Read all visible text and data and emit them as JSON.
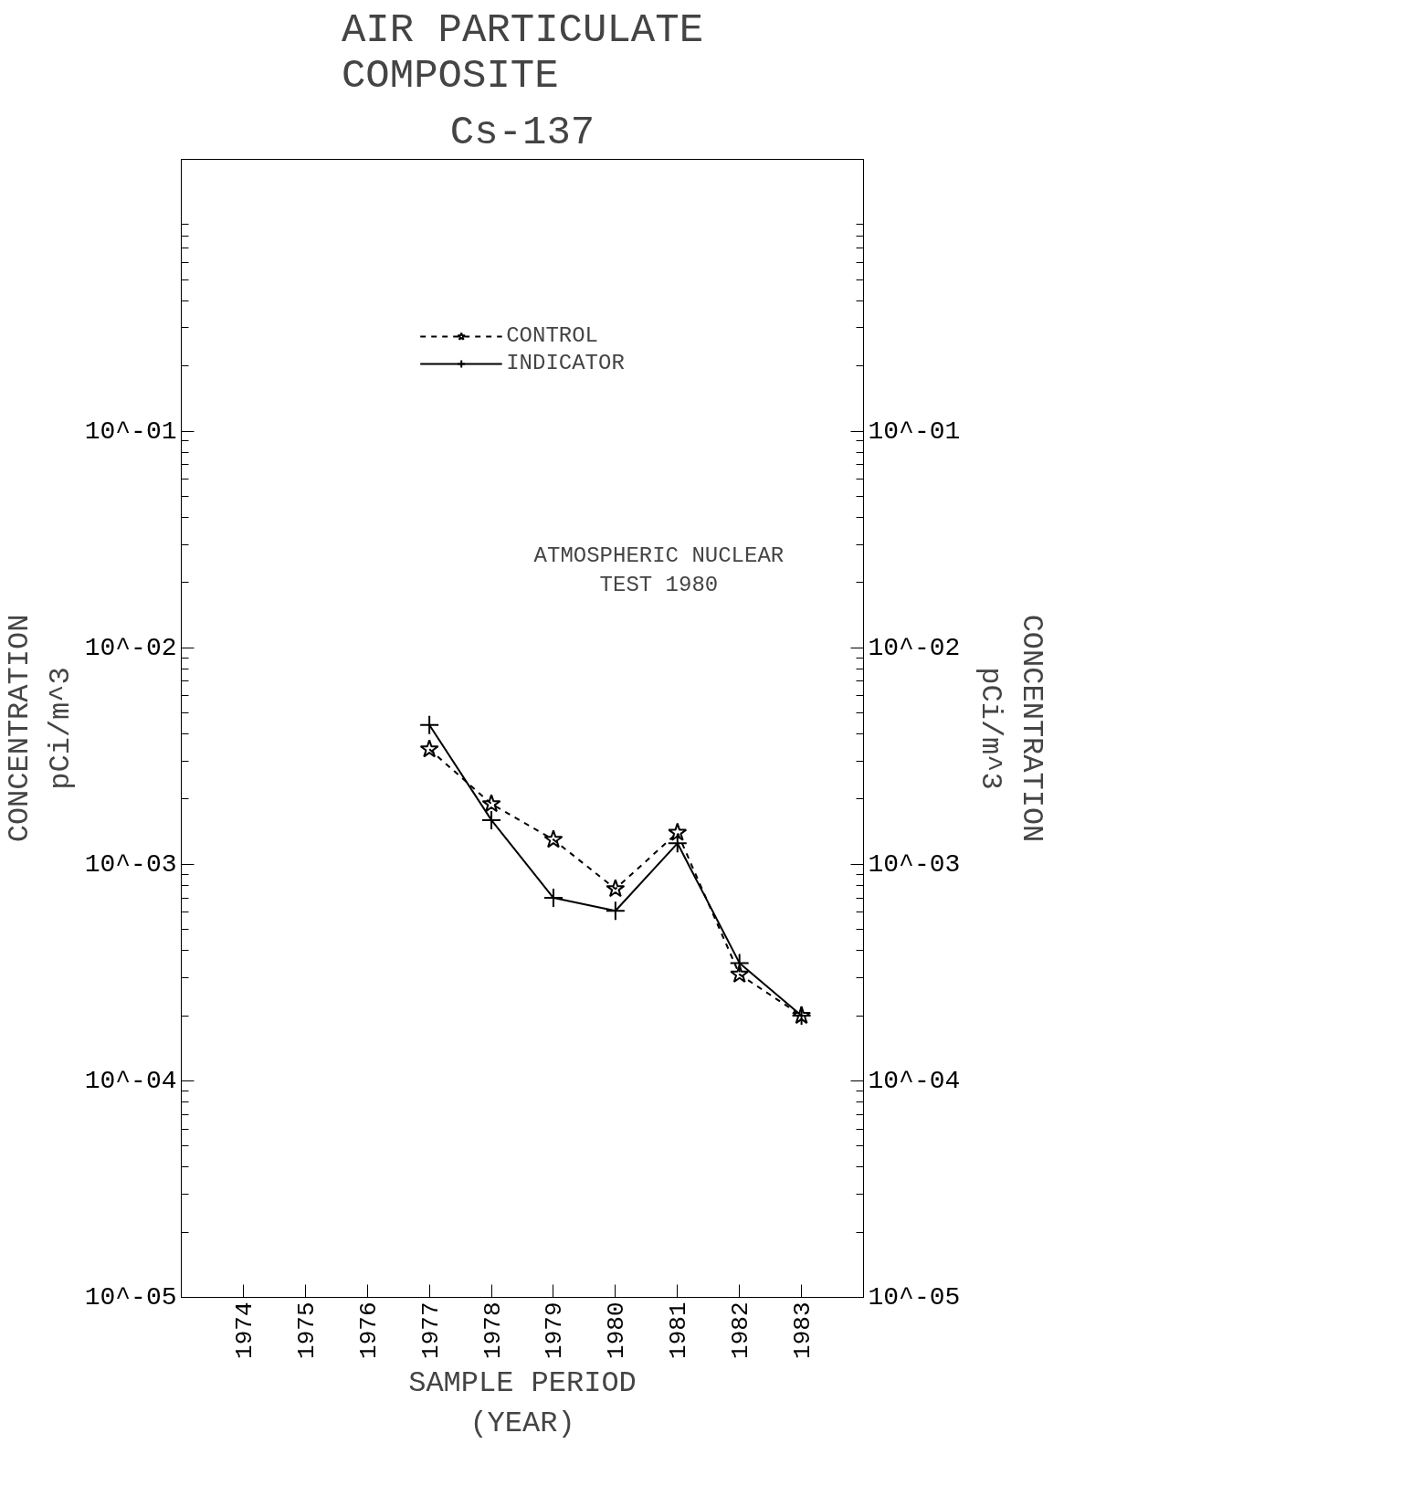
{
  "chart_data": {
    "type": "line",
    "title": "AIR PARTICULATE\nCOMPOSITE",
    "subtitle": "Cs-137",
    "xlabel": "SAMPLE PERIOD\n(YEAR)",
    "ylabel": "CONCENTRATION\npCi/m^3",
    "annotations": [
      "ATMOSPHERIC NUCLEAR\nTEST 1980"
    ],
    "x": [
      1977,
      1978,
      1979,
      1980,
      1981,
      1982,
      1983
    ],
    "series": [
      {
        "name": "CONTROL",
        "color": "#000000",
        "line_style": "dashed",
        "marker": "star",
        "values": [
          0.0034,
          0.0019,
          0.0013,
          0.00077,
          0.0014,
          0.00031,
          0.0002
        ]
      },
      {
        "name": "INDICATOR",
        "color": "#000000",
        "line_style": "solid",
        "marker": "cross",
        "values": [
          0.0044,
          0.0016,
          0.0007,
          0.00061,
          0.00125,
          0.00035,
          0.0002
        ]
      }
    ],
    "log": "y",
    "grid": false,
    "legend": "top",
    "xlim": [
      1973,
      1984
    ],
    "xticks": [
      1974,
      1975,
      1976,
      1977,
      1978,
      1979,
      1980,
      1981,
      1982,
      1983
    ],
    "ylim": [
      1e-05,
      1.8
    ],
    "yticks": [
      {
        "value": 1e-05,
        "label": "10^-05"
      },
      {
        "value": 0.0001,
        "label": "10^-04"
      },
      {
        "value": 0.001,
        "label": "10^-03"
      },
      {
        "value": 0.01,
        "label": "10^-02"
      },
      {
        "value": 0.1,
        "label": "10^-01"
      }
    ]
  }
}
